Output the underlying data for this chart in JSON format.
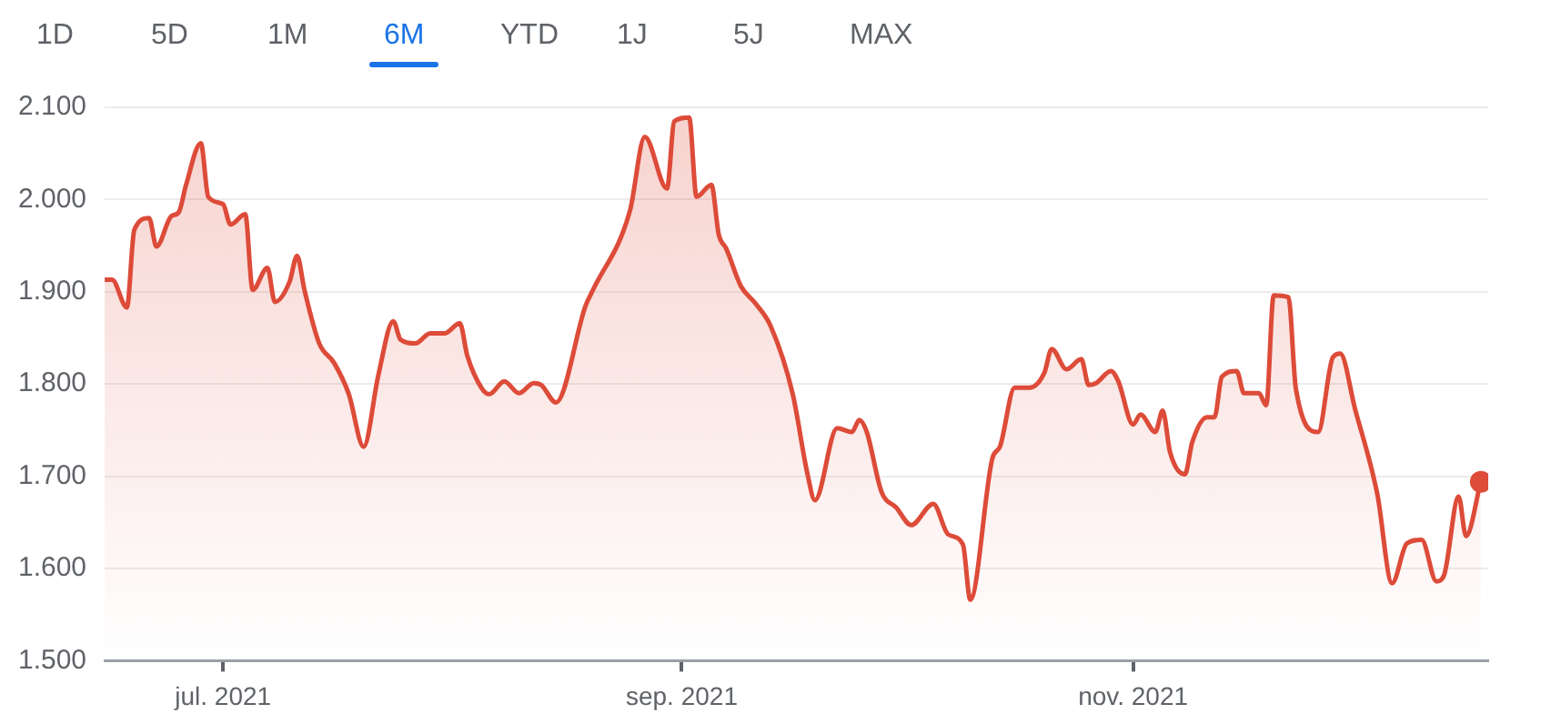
{
  "chart_data": {
    "type": "area",
    "annotations": [
      "1D",
      "5D",
      "1M",
      "6M",
      "YTD",
      "1J",
      "5J",
      "MAX"
    ],
    "x": [
      "2021-06-15",
      "2021-06-16",
      "2021-06-18",
      "2021-06-19",
      "2021-06-21",
      "2021-06-22",
      "2021-06-24",
      "2021-06-25",
      "2021-06-26",
      "2021-06-28",
      "2021-06-29",
      "2021-07-01",
      "2021-07-02",
      "2021-07-04",
      "2021-07-05",
      "2021-07-07",
      "2021-07-08",
      "2021-07-10",
      "2021-07-11",
      "2021-07-12",
      "2021-07-14",
      "2021-07-16",
      "2021-07-18",
      "2021-07-20",
      "2021-07-22",
      "2021-07-24",
      "2021-07-25",
      "2021-07-27",
      "2021-07-29",
      "2021-07-31",
      "2021-08-02",
      "2021-08-03",
      "2021-08-05",
      "2021-08-06",
      "2021-08-08",
      "2021-08-10",
      "2021-08-12",
      "2021-08-13",
      "2021-08-15",
      "2021-08-19",
      "2021-08-20",
      "2021-08-25",
      "2021-08-27",
      "2021-08-30",
      "2021-08-31",
      "2021-09-02",
      "2021-09-03",
      "2021-09-05",
      "2021-09-06",
      "2021-09-07",
      "2021-09-09",
      "2021-09-11",
      "2021-09-13",
      "2021-09-16",
      "2021-09-18",
      "2021-09-19",
      "2021-09-22",
      "2021-09-24",
      "2021-09-25",
      "2021-09-26",
      "2021-09-28",
      "2021-09-30",
      "2021-10-02",
      "2021-10-05",
      "2021-10-07",
      "2021-10-09",
      "2021-10-10",
      "2021-10-13",
      "2021-10-14",
      "2021-10-16",
      "2021-10-18",
      "2021-10-20",
      "2021-10-21",
      "2021-10-23",
      "2021-10-25",
      "2021-10-26",
      "2021-10-27",
      "2021-10-29",
      "2021-10-30",
      "2021-11-01",
      "2021-11-02",
      "2021-11-04",
      "2021-11-05",
      "2021-11-06",
      "2021-11-08",
      "2021-11-09",
      "2021-11-11",
      "2021-11-12",
      "2021-11-13",
      "2021-11-15",
      "2021-11-16",
      "2021-11-18",
      "2021-11-19",
      "2021-11-20",
      "2021-11-22",
      "2021-11-23",
      "2021-11-26",
      "2021-11-28",
      "2021-11-29",
      "2021-12-01",
      "2021-12-04",
      "2021-12-06",
      "2021-12-08",
      "2021-12-10",
      "2021-12-12",
      "2021-12-13",
      "2021-12-15",
      "2021-12-16",
      "2021-12-18"
    ],
    "series": [
      {
        "color": "#dd4b39",
        "values": [
          1913,
          1913,
          1883,
          1967,
          1980,
          1949,
          1982,
          1986,
          2016,
          2061,
          2003,
          1995,
          1973,
          1984,
          1902,
          1926,
          1889,
          1911,
          1939,
          1902,
          1844,
          1823,
          1789,
          1732,
          1810,
          1868,
          1848,
          1844,
          1855,
          1855,
          1866,
          1831,
          1795,
          1789,
          1803,
          1790,
          1801,
          1799,
          1780,
          1885,
          1902,
          1988,
          2068,
          2012,
          2085,
          2089,
          2003,
          2016,
          1962,
          1947,
          1906,
          1887,
          1863,
          1789,
          1702,
          1674,
          1752,
          1748,
          1761,
          1748,
          1683,
          1666,
          1647,
          1670,
          1637,
          1626,
          1566,
          1720,
          1732,
          1796,
          1796,
          1812,
          1838,
          1816,
          1827,
          1799,
          1801,
          1814,
          1803,
          1756,
          1767,
          1748,
          1771,
          1726,
          1702,
          1737,
          1764,
          1764,
          1808,
          1814,
          1790,
          1790,
          1777,
          1896,
          1894,
          1795,
          1748,
          1829,
          1833,
          1773,
          1681,
          1584,
          1627,
          1631,
          1586,
          1592,
          1678,
          1635,
          1694
        ]
      }
    ],
    "xlim": [
      "2021-06-15",
      "2021-12-19"
    ],
    "xticks": [
      {
        "value": "2021-07-01",
        "label": "jul. 2021"
      },
      {
        "value": "2021-09-01",
        "label": "sep. 2021"
      },
      {
        "value": "2021-11-01",
        "label": "nov. 2021"
      }
    ],
    "ylim": [
      1500,
      2100
    ],
    "yticks": [
      {
        "value": 1500,
        "label": "1.500"
      },
      {
        "value": 1600,
        "label": "1.600"
      },
      {
        "value": 1700,
        "label": "1.700"
      },
      {
        "value": 1800,
        "label": "1.800"
      },
      {
        "value": 1900,
        "label": "1.900"
      },
      {
        "value": 2000,
        "label": "2.000"
      },
      {
        "value": 2100,
        "label": "2.100"
      }
    ],
    "grid": "y",
    "legend": false,
    "marker": "none",
    "line_style": "solid"
  }
}
